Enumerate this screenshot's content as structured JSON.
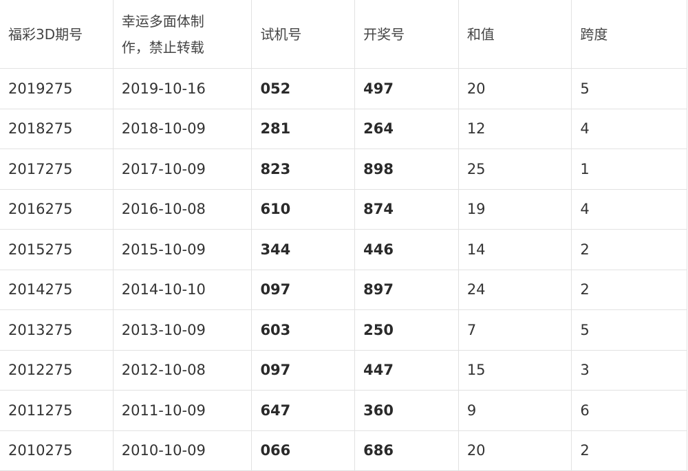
{
  "headers": [
    "福彩3D期号",
    "幸运多面体制作，禁止转载",
    "试机号",
    "开奖号",
    "和值",
    "跨度"
  ],
  "rows": [
    [
      "2019275",
      "2019-10-16",
      "052",
      "497",
      "20",
      "5"
    ],
    [
      "2018275",
      "2018-10-09",
      "281",
      "264",
      "12",
      "4"
    ],
    [
      "2017275",
      "2017-10-09",
      "823",
      "898",
      "25",
      "1"
    ],
    [
      "2016275",
      "2016-10-08",
      "610",
      "874",
      "19",
      "4"
    ],
    [
      "2015275",
      "2015-10-09",
      "344",
      "446",
      "14",
      "2"
    ],
    [
      "2014275",
      "2014-10-10",
      "097",
      "897",
      "24",
      "2"
    ],
    [
      "2013275",
      "2013-10-09",
      "603",
      "250",
      "7",
      "5"
    ],
    [
      "2012275",
      "2012-10-08",
      "097",
      "447",
      "15",
      "3"
    ],
    [
      "2011275",
      "2011-10-09",
      "647",
      "360",
      "9",
      "6"
    ],
    [
      "2010275",
      "2010-10-09",
      "066",
      "686",
      "20",
      "2"
    ]
  ]
}
